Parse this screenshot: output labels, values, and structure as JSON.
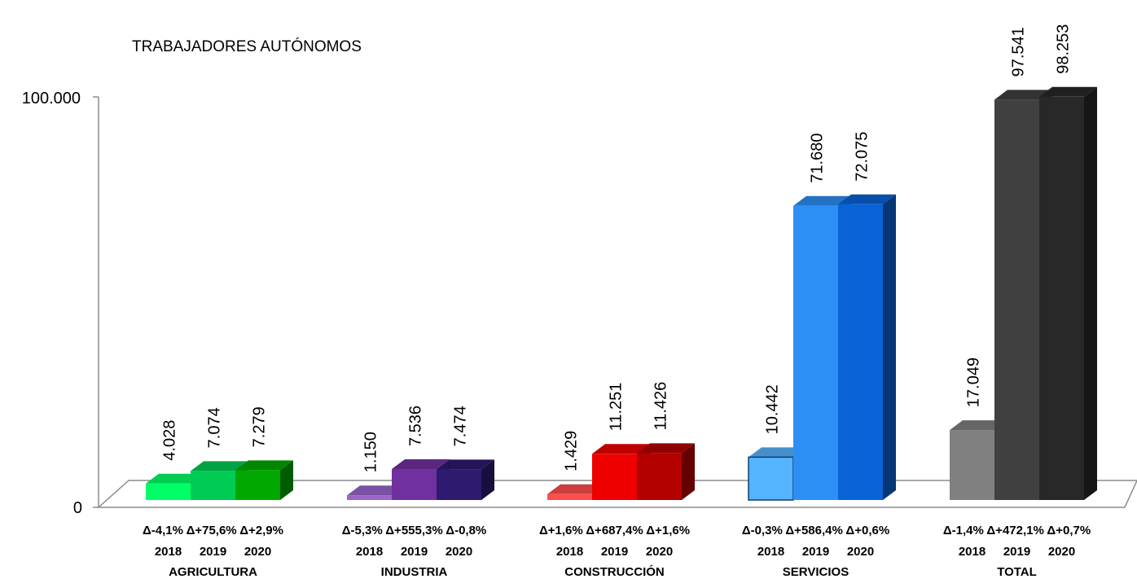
{
  "chart_data": {
    "type": "bar",
    "title": "TRABAJADORES AUTÓNOMOS",
    "ylim": [
      0,
      100000
    ],
    "yticks": [
      "0",
      "100.000"
    ],
    "grid": false,
    "legend": "none",
    "groups": [
      {
        "name": "AGRICULTURA",
        "bars": [
          {
            "year": "2018",
            "value": 4028,
            "value_label": "4.028",
            "delta": "Δ-4,1%",
            "color": "#00ff66"
          },
          {
            "year": "2019",
            "value": 7074,
            "value_label": "7.074",
            "delta": "Δ+75,6%",
            "color": "#00cc55"
          },
          {
            "year": "2020",
            "value": 7279,
            "value_label": "7.279",
            "delta": "Δ+2,9%",
            "color": "#00a800"
          }
        ]
      },
      {
        "name": "INDUSTRIA",
        "bars": [
          {
            "year": "2018",
            "value": 1150,
            "value_label": "1.150",
            "delta": "Δ-5,3%",
            "color": "#9966cc"
          },
          {
            "year": "2019",
            "value": 7536,
            "value_label": "7.536",
            "delta": "Δ+555,3%",
            "color": "#7030a0"
          },
          {
            "year": "2020",
            "value": 7474,
            "value_label": "7.474",
            "delta": "Δ-0,8%",
            "color": "#2e1a6e"
          }
        ]
      },
      {
        "name": "CONSTRUCCIÓN",
        "bars": [
          {
            "year": "2018",
            "value": 1429,
            "value_label": "1.429",
            "delta": "Δ+1,6%",
            "color": "#ff4d4d"
          },
          {
            "year": "2019",
            "value": 11251,
            "value_label": "11.251",
            "delta": "Δ+687,4%",
            "color": "#ee0000"
          },
          {
            "year": "2020",
            "value": 11426,
            "value_label": "11.426",
            "delta": "Δ+1,6%",
            "color": "#b50000"
          }
        ]
      },
      {
        "name": "SERVICIOS",
        "bars": [
          {
            "year": "2018",
            "value": 10442,
            "value_label": "10.442",
            "delta": "Δ-0,3%",
            "color": "#55b4ff"
          },
          {
            "year": "2019",
            "value": 71680,
            "value_label": "71.680",
            "delta": "Δ+586,4%",
            "color": "#2c8ff5"
          },
          {
            "year": "2020",
            "value": 72075,
            "value_label": "72.075",
            "delta": "Δ+0,6%",
            "color": "#0a63d6"
          }
        ]
      },
      {
        "name": "TOTAL",
        "bars": [
          {
            "year": "2018",
            "value": 17049,
            "value_label": "17.049",
            "delta": "Δ-1,4%",
            "color": "#808080"
          },
          {
            "year": "2019",
            "value": 97541,
            "value_label": "97.541",
            "delta": "Δ+472,1%",
            "color": "#404040"
          },
          {
            "year": "2020",
            "value": 98253,
            "value_label": "98.253",
            "delta": "Δ+0,7%",
            "color": "#282828"
          }
        ]
      }
    ]
  }
}
